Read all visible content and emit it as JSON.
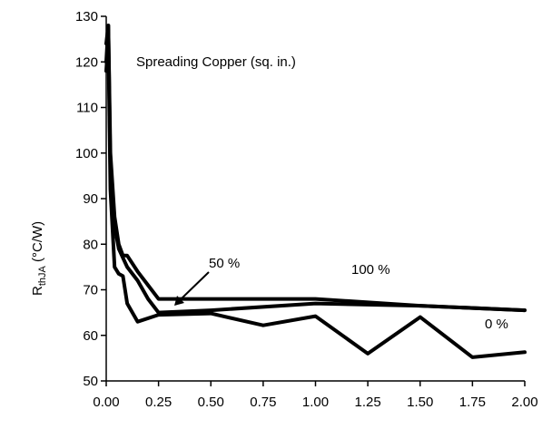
{
  "chart_data": {
    "type": "line",
    "title": "",
    "xlabel": "",
    "ylabel": "R",
    "ylabel_sub": "thJA",
    "ylabel_unit": " (°C/W)",
    "xlim": [
      0,
      2
    ],
    "ylim": [
      50,
      130
    ],
    "x_ticks": [
      0,
      0.25,
      0.5,
      0.75,
      1.0,
      1.25,
      1.5,
      1.75,
      2.0
    ],
    "x_tick_labels": [
      "0.00",
      "0.25",
      "0.50",
      "0.75",
      "1.00",
      "1.25",
      "1.50",
      "1.75",
      "2.00"
    ],
    "y_ticks": [
      50,
      60,
      70,
      80,
      90,
      100,
      110,
      120,
      130
    ],
    "y_tick_labels": [
      "50",
      "60",
      "70",
      "80",
      "90",
      "100",
      "110",
      "120",
      "130"
    ],
    "grid": false,
    "annotations": {
      "header": "Spreading Copper (sq. in.)",
      "series_100": "100 %",
      "series_50": "50 %",
      "series_0": "0 %"
    },
    "series": [
      {
        "name": "100 %",
        "x": [
          0.0,
          0.01,
          0.02,
          0.04,
          0.06,
          0.08,
          0.1,
          0.15,
          0.2,
          0.25,
          0.5,
          1.0,
          1.5,
          2.0
        ],
        "y": [
          124,
          128,
          100,
          86,
          80,
          77.5,
          77.5,
          74,
          71,
          68,
          68,
          68,
          66.5,
          65.5
        ]
      },
      {
        "name": "50 %",
        "x": [
          0.0,
          0.01,
          0.02,
          0.04,
          0.06,
          0.08,
          0.1,
          0.15,
          0.2,
          0.25,
          0.5,
          1.0,
          1.5,
          2.0
        ],
        "y": [
          120,
          128,
          96,
          84,
          79,
          77,
          75,
          72,
          68,
          65,
          65.5,
          67,
          66.5,
          65.5
        ]
      },
      {
        "name": "0 %",
        "x": [
          0.0,
          0.01,
          0.02,
          0.04,
          0.06,
          0.08,
          0.1,
          0.15,
          0.25,
          0.5,
          0.75,
          1.0,
          1.25,
          1.5,
          1.75,
          2.0
        ],
        "y": [
          118,
          125,
          92,
          75,
          73.5,
          73,
          67,
          63,
          64.5,
          64.8,
          62.2,
          64.2,
          56,
          64,
          55.2,
          56.3
        ]
      }
    ]
  }
}
